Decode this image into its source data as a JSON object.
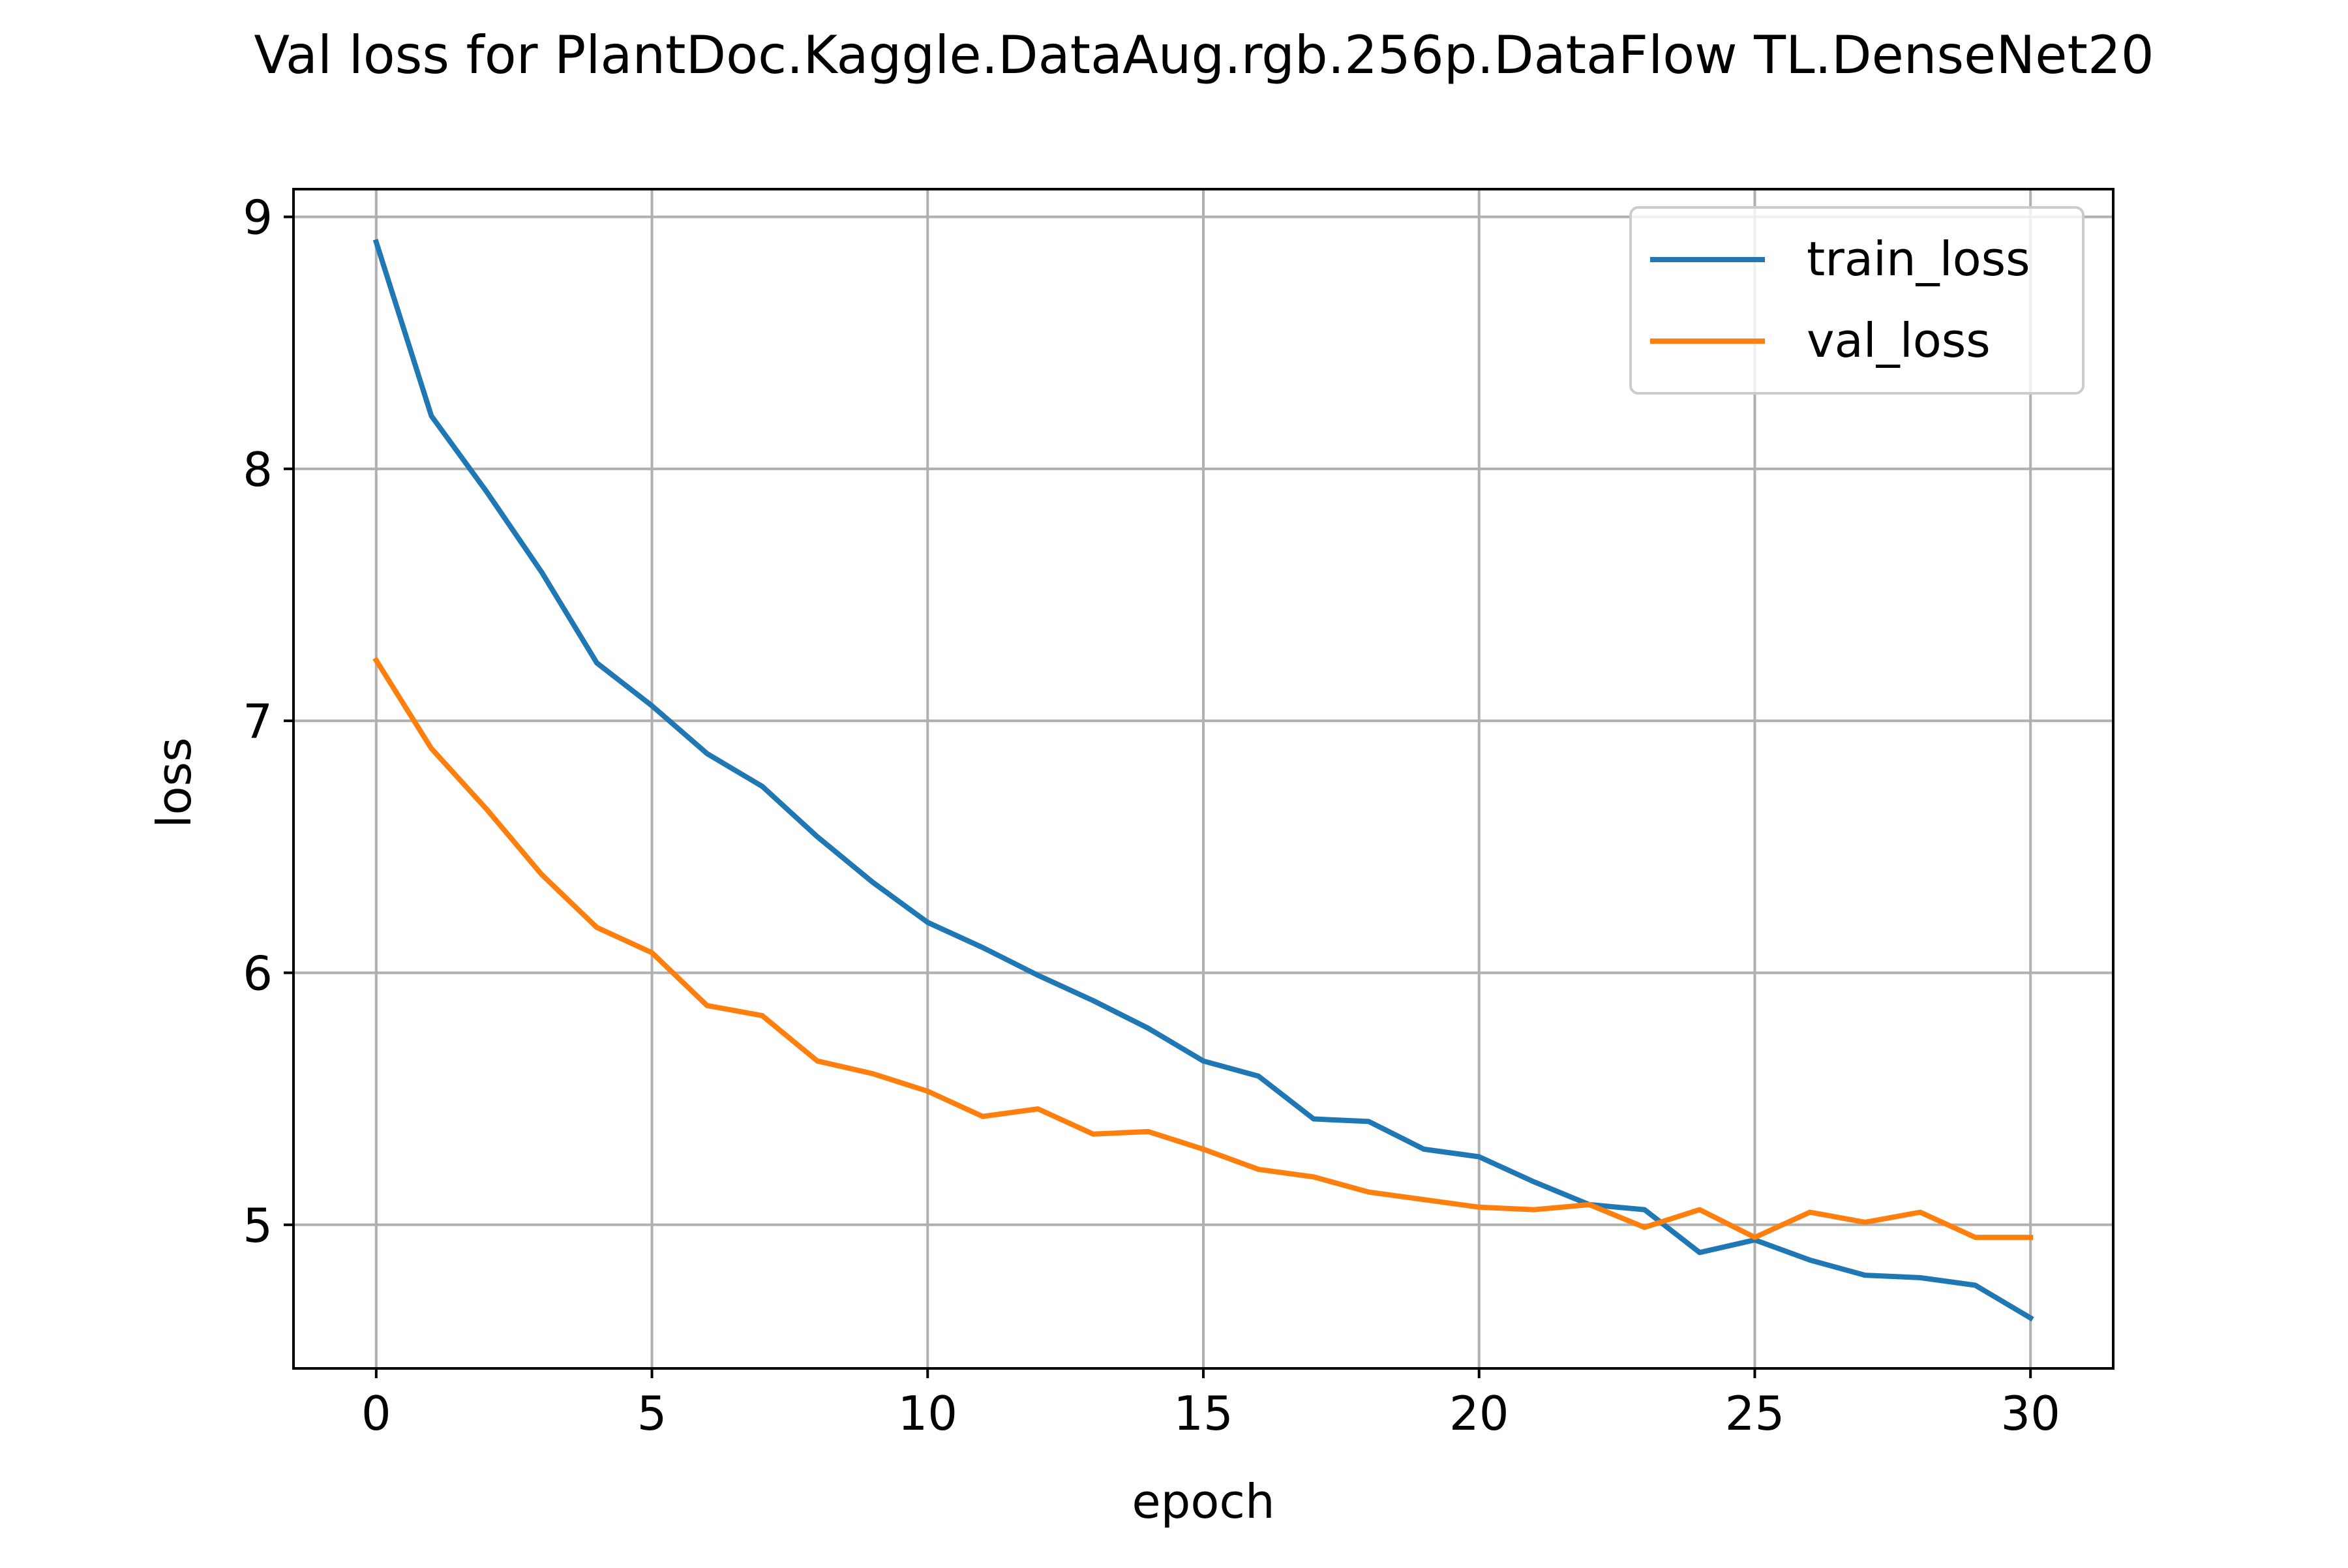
{
  "chart_data": {
    "type": "line",
    "title": "Val loss for PlantDoc.Kaggle.DataAug.rgb.256p.DataFlow TL.DenseNet20",
    "xlabel": "epoch",
    "ylabel": "loss",
    "xlim": [
      -1.5,
      31.5
    ],
    "ylim": [
      4.43,
      9.11
    ],
    "xticks": [
      0,
      5,
      10,
      15,
      20,
      25,
      30
    ],
    "yticks": [
      5,
      6,
      7,
      8,
      9
    ],
    "grid": true,
    "legend_position": "top-right",
    "x": [
      0,
      1,
      2,
      3,
      4,
      5,
      6,
      7,
      8,
      9,
      10,
      11,
      12,
      13,
      14,
      15,
      16,
      17,
      18,
      19,
      20,
      21,
      22,
      23,
      24,
      25,
      26,
      27,
      28,
      29,
      30
    ],
    "series": [
      {
        "name": "train_loss",
        "color": "#1f77b4",
        "values": [
          8.9,
          8.21,
          7.91,
          7.59,
          7.23,
          7.06,
          6.87,
          6.74,
          6.54,
          6.36,
          6.2,
          6.1,
          5.99,
          5.89,
          5.78,
          5.65,
          5.59,
          5.42,
          5.41,
          5.3,
          5.27,
          5.17,
          5.08,
          5.06,
          4.89,
          4.94,
          4.86,
          4.8,
          4.79,
          4.76,
          4.63
        ]
      },
      {
        "name": "val_loss",
        "color": "#ff7f0e",
        "values": [
          7.24,
          6.89,
          6.65,
          6.39,
          6.18,
          6.08,
          5.87,
          5.83,
          5.65,
          5.6,
          5.53,
          5.43,
          5.46,
          5.36,
          5.37,
          5.3,
          5.22,
          5.19,
          5.13,
          5.1,
          5.07,
          5.06,
          5.08,
          4.99,
          5.06,
          4.95,
          5.05,
          5.01,
          5.05,
          4.95,
          4.95
        ]
      }
    ]
  }
}
